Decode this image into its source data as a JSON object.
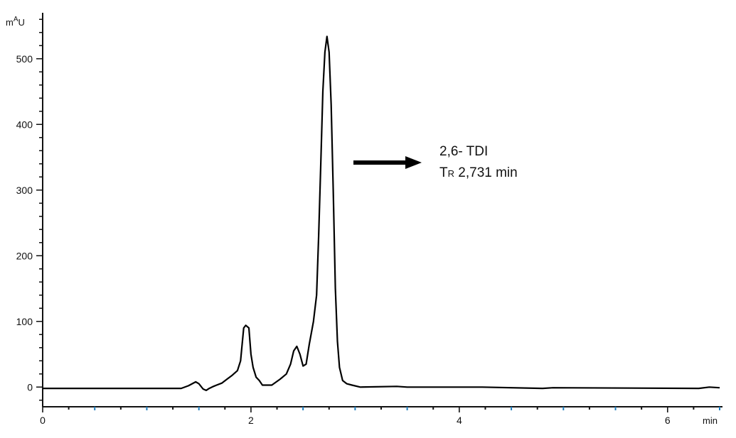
{
  "chart_data": {
    "type": "line",
    "y_unit": "mAU",
    "x_unit": "min",
    "xlim": [
      0,
      6.5
    ],
    "ylim": [
      -30,
      570
    ],
    "x_ticks": [
      0,
      2,
      4,
      6
    ],
    "x_tick_labels": [
      "0",
      "2",
      "4",
      "6"
    ],
    "y_ticks": [
      0,
      100,
      200,
      300,
      400,
      500
    ],
    "y_tick_labels": [
      "0",
      "100",
      "200",
      "300",
      "400",
      "500"
    ],
    "x_minor_step": 0.25,
    "y_minor_step": 20,
    "grid": false,
    "series": [
      {
        "x": [
          0,
          1.33,
          1.4,
          1.47,
          1.5,
          1.54,
          1.57,
          1.6,
          1.64,
          1.67,
          1.72,
          1.77,
          1.82,
          1.87,
          1.9,
          1.93,
          1.95,
          1.98,
          2.0,
          2.02,
          2.05,
          2.08,
          2.11,
          2.2,
          2.28,
          2.34,
          2.38,
          2.41,
          2.44,
          2.47,
          2.5,
          2.53,
          2.56,
          2.6,
          2.63,
          2.65,
          2.67,
          2.69,
          2.71,
          2.73,
          2.75,
          2.77,
          2.79,
          2.81,
          2.83,
          2.85,
          2.88,
          2.92,
          2.97,
          3.05,
          3.4,
          3.5,
          4.22,
          4.8,
          4.9,
          6.3,
          6.4,
          6.5
        ],
        "y": [
          -2,
          -2,
          2,
          8,
          5,
          -3,
          -5,
          -2,
          1,
          3,
          6,
          12,
          18,
          25,
          40,
          90,
          94,
          90,
          50,
          30,
          15,
          10,
          3,
          3,
          12,
          20,
          35,
          55,
          62,
          50,
          32,
          35,
          65,
          100,
          140,
          230,
          340,
          450,
          510,
          534,
          510,
          430,
          300,
          150,
          70,
          30,
          10,
          5,
          3,
          0,
          1,
          0,
          0,
          -2,
          -1,
          -2,
          0,
          -1
        ]
      }
    ],
    "annotations": [
      {
        "line1": "2,6- TDI",
        "line2_symbol": "T",
        "line2_subscript": "R",
        "line2_value": " 2,731 min"
      }
    ]
  }
}
